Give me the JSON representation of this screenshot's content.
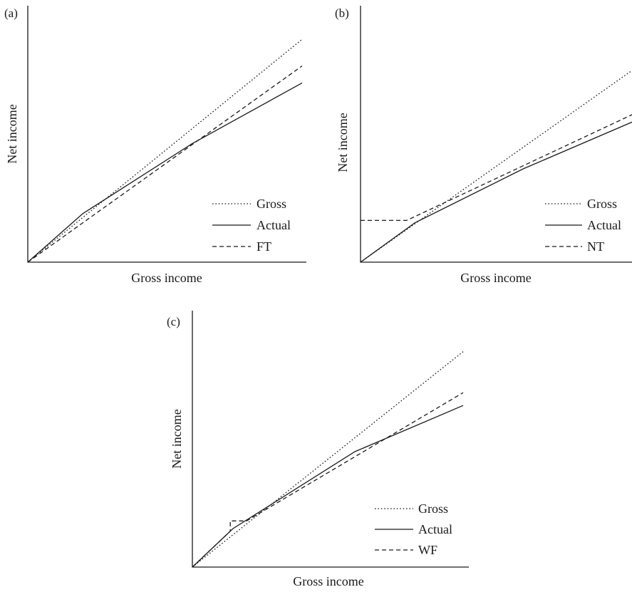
{
  "figure": {
    "layout": "three panels: (a) top-left, (b) top-right, (c) bottom-center"
  },
  "colors": {
    "ink": "#1a1a1a",
    "background": "#ffffff"
  },
  "chart_data": [
    {
      "panel_label": "(a)",
      "type": "line",
      "xlabel": "Gross income",
      "ylabel": "Net income",
      "xlim": [
        0,
        100
      ],
      "ylim": [
        0,
        100
      ],
      "grid": false,
      "legend_position": "bottom-right",
      "series": [
        {
          "name": "Gross",
          "style": "dotted",
          "x": [
            0,
            100
          ],
          "y": [
            0,
            92
          ]
        },
        {
          "name": "Actual",
          "style": "solid",
          "x": [
            0,
            20,
            60,
            100
          ],
          "y": [
            0,
            20,
            49,
            74
          ]
        },
        {
          "name": "FT",
          "style": "dashed",
          "x": [
            0,
            100
          ],
          "y": [
            0,
            81
          ]
        }
      ]
    },
    {
      "panel_label": "(b)",
      "type": "line",
      "xlabel": "Gross income",
      "ylabel": "Net income",
      "xlim": [
        0,
        100
      ],
      "ylim": [
        0,
        100
      ],
      "grid": false,
      "legend_position": "bottom-right",
      "series": [
        {
          "name": "Gross",
          "style": "dotted",
          "x": [
            0,
            100
          ],
          "y": [
            0,
            78
          ]
        },
        {
          "name": "Actual",
          "style": "solid",
          "x": [
            0,
            20,
            60,
            100
          ],
          "y": [
            0,
            16,
            38,
            57
          ]
        },
        {
          "name": "NT",
          "style": "dashed",
          "x": [
            0,
            17,
            100
          ],
          "y": [
            17,
            17,
            60
          ]
        }
      ]
    },
    {
      "panel_label": "(c)",
      "type": "line",
      "xlabel": "Gross income",
      "ylabel": "Net income",
      "xlim": [
        0,
        100
      ],
      "ylim": [
        0,
        100
      ],
      "grid": false,
      "legend_position": "bottom-right",
      "series": [
        {
          "name": "Gross",
          "style": "dotted",
          "x": [
            0,
            100
          ],
          "y": [
            0,
            84
          ]
        },
        {
          "name": "Actual",
          "style": "solid",
          "x": [
            0,
            15,
            60,
            100
          ],
          "y": [
            0,
            15,
            45,
            63
          ]
        },
        {
          "name": "WF",
          "style": "dashed",
          "x": [
            0,
            14,
            14,
            20,
            100
          ],
          "y": [
            0,
            14,
            18,
            18,
            68
          ]
        }
      ]
    }
  ]
}
